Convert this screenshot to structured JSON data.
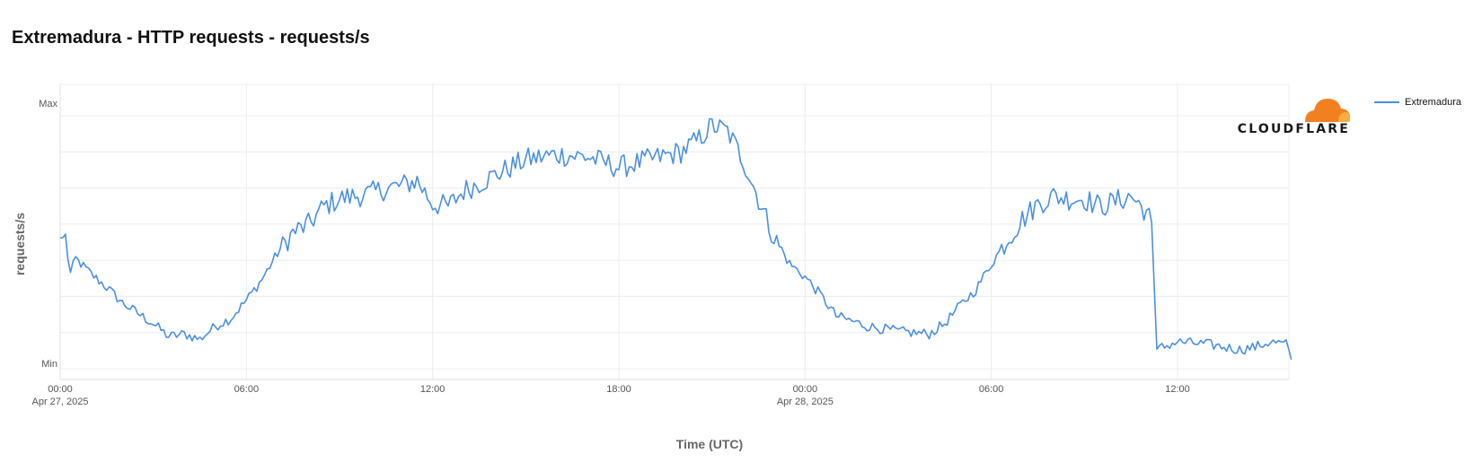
{
  "title": "Extremadura - HTTP requests - requests/s",
  "legend": {
    "label": "Extremadura",
    "color": "#4a90e2"
  },
  "logo": {
    "text": "CLOUDFLARE",
    "icon": "cloudflare-cloud-icon",
    "colors": [
      "#f38020",
      "#faae40"
    ]
  },
  "chart_data": {
    "type": "line",
    "title": "Extremadura - HTTP requests - requests/s",
    "xlabel": "Time (UTC)",
    "ylabel": "requests/s",
    "y_ticks": [
      "Max",
      "Min"
    ],
    "x_ticks": [
      {
        "label": "00:00",
        "sub": "Apr 27, 2025"
      },
      {
        "label": "06:00",
        "sub": ""
      },
      {
        "label": "12:00",
        "sub": ""
      },
      {
        "label": "18:00",
        "sub": ""
      },
      {
        "label": "00:00",
        "sub": "Apr 28, 2025"
      },
      {
        "label": "06:00",
        "sub": ""
      },
      {
        "label": "12:00",
        "sub": ""
      }
    ],
    "x_range_hours": [
      0,
      39.7
    ],
    "ylim": [
      0,
      1
    ],
    "grid": true,
    "legend_position": "right",
    "series": [
      {
        "name": "Extremadura",
        "color": "#4a90e2",
        "anchors": [
          [
            0,
            0.5
          ],
          [
            0.2,
            0.5
          ],
          [
            0.3,
            0.35
          ],
          [
            0.5,
            0.42
          ],
          [
            1,
            0.36
          ],
          [
            1.5,
            0.31
          ],
          [
            2,
            0.25
          ],
          [
            2.5,
            0.21
          ],
          [
            3,
            0.17
          ],
          [
            3.5,
            0.12
          ],
          [
            4,
            0.13
          ],
          [
            4.5,
            0.11
          ],
          [
            5,
            0.16
          ],
          [
            5.5,
            0.19
          ],
          [
            6,
            0.26
          ],
          [
            6.5,
            0.34
          ],
          [
            7,
            0.44
          ],
          [
            7.5,
            0.52
          ],
          [
            8,
            0.55
          ],
          [
            8.5,
            0.62
          ],
          [
            9,
            0.65
          ],
          [
            9.5,
            0.66
          ],
          [
            10,
            0.67
          ],
          [
            10.5,
            0.69
          ],
          [
            11,
            0.7
          ],
          [
            11.5,
            0.72
          ],
          [
            12,
            0.63
          ],
          [
            12.5,
            0.62
          ],
          [
            13,
            0.68
          ],
          [
            14,
            0.74
          ],
          [
            15,
            0.8
          ],
          [
            16,
            0.82
          ],
          [
            17,
            0.81
          ],
          [
            18,
            0.77
          ],
          [
            19,
            0.8
          ],
          [
            20,
            0.83
          ],
          [
            20.5,
            0.87
          ],
          [
            21,
            0.93
          ],
          [
            21.5,
            0.91
          ],
          [
            22,
            0.8
          ],
          [
            22.5,
            0.65
          ],
          [
            23,
            0.5
          ],
          [
            23.5,
            0.4
          ],
          [
            24,
            0.35
          ],
          [
            24.5,
            0.28
          ],
          [
            25,
            0.2
          ],
          [
            26,
            0.16
          ],
          [
            27,
            0.14
          ],
          [
            28,
            0.13
          ],
          [
            28.5,
            0.17
          ],
          [
            29,
            0.24
          ],
          [
            29.5,
            0.3
          ],
          [
            30,
            0.4
          ],
          [
            30.5,
            0.49
          ],
          [
            31,
            0.57
          ],
          [
            31.5,
            0.63
          ],
          [
            32,
            0.66
          ],
          [
            32.5,
            0.65
          ],
          [
            33,
            0.65
          ],
          [
            33.5,
            0.62
          ],
          [
            34,
            0.64
          ],
          [
            34.5,
            0.66
          ],
          [
            35,
            0.6
          ],
          [
            35.2,
            0.55
          ],
          [
            35.3,
            0.07
          ],
          [
            36,
            0.1
          ],
          [
            37,
            0.09
          ],
          [
            38,
            0.07
          ],
          [
            38.5,
            0.08
          ],
          [
            39,
            0.1
          ],
          [
            39.5,
            0.09
          ],
          [
            39.7,
            0.02
          ]
        ]
      }
    ]
  }
}
